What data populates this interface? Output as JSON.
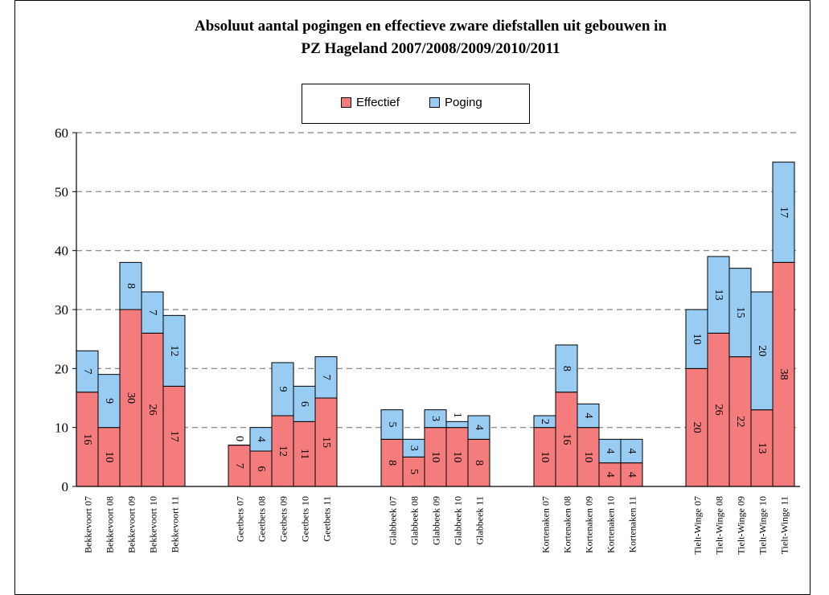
{
  "chart_data": {
    "type": "bar",
    "stacked": true,
    "title": "Absoluut aantal pogingen en effectieve zware diefstallen uit gebouwen in",
    "subtitle": "PZ Hageland 2007/2008/2009/2010/2011",
    "ylim": [
      0,
      60
    ],
    "yticks": [
      "0",
      "10",
      "20",
      "30",
      "40",
      "50",
      "60"
    ],
    "grid": true,
    "legend_position": "top-center",
    "groups": [
      [
        "Bekkevoort 07",
        "Bekkevoort 08",
        "Bekkevoort 09",
        "Bekkevoort 10",
        "Bekkevoort 11"
      ],
      [
        "Geetbets 07",
        "Geetbets 08",
        "Geetbets 09",
        "Geetbets 10",
        "Geetbets 11"
      ],
      [
        "Glabbeek 07",
        "Glabbeek 08",
        "Glabbeek 09",
        "Glabbeek 10",
        "Glabbeek 11"
      ],
      [
        "Kortenaken 07",
        "Kortenaken 08",
        "Kortenaken 09",
        "Kortenaken 10",
        "Kortenaken 11"
      ],
      [
        "Tielt-Winge 07",
        "Tielt-Winge 08",
        "Tielt-Winge 09",
        "Tielt-Winge 10",
        "Tielt-Winge 11"
      ]
    ],
    "series": [
      {
        "name": "Effectief",
        "color": "#f47c7c",
        "values": [
          16,
          10,
          30,
          26,
          17,
          7,
          6,
          12,
          11,
          15,
          8,
          5,
          10,
          10,
          8,
          10,
          16,
          10,
          4,
          4,
          20,
          26,
          22,
          13,
          38
        ],
        "labels": [
          "16",
          "10",
          "30",
          "26",
          "17",
          "7",
          "6",
          "12",
          "11",
          "15",
          "8",
          "5",
          "10",
          "10",
          "8",
          "10",
          "16",
          "10",
          "4",
          "4",
          "20",
          "26",
          "22",
          "13",
          "38"
        ]
      },
      {
        "name": "Poging",
        "color": "#99ccf3",
        "values": [
          7,
          9,
          8,
          7,
          12,
          0,
          4,
          9,
          6,
          7,
          5,
          3,
          3,
          1,
          4,
          2,
          8,
          4,
          4,
          4,
          10,
          13,
          15,
          20,
          17
        ],
        "labels": [
          "7",
          "9",
          "8",
          "7",
          "12",
          "0",
          "4",
          "9",
          "6",
          "7",
          "5",
          "3",
          "3",
          "1",
          "4",
          "2",
          "8",
          "4",
          "4",
          "4",
          "10",
          "13",
          "15",
          "20",
          "17"
        ]
      }
    ]
  }
}
